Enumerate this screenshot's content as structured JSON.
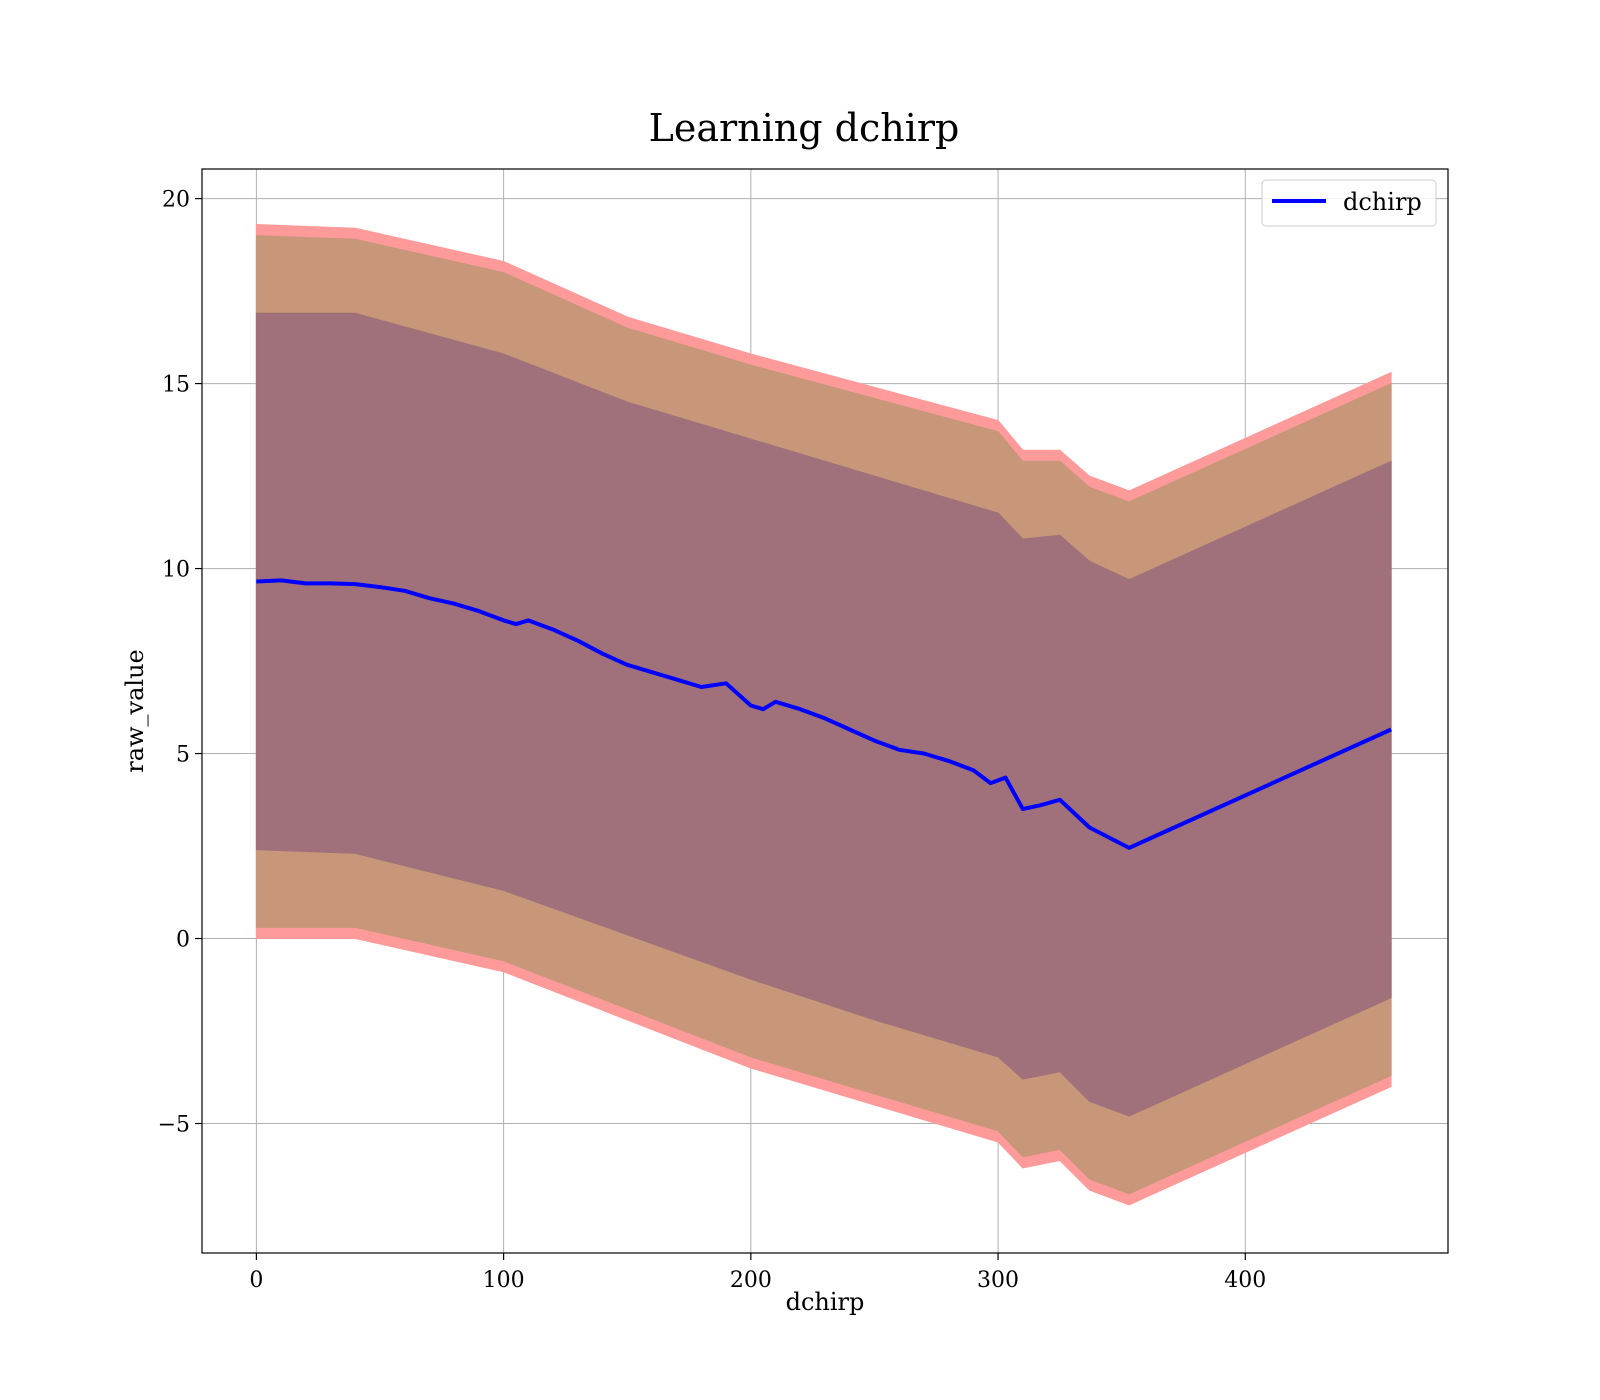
{
  "chart_data": {
    "type": "line",
    "title": "Learning dchirp",
    "xlabel": "dchirp",
    "ylabel": "raw_value",
    "xlim": [
      -22,
      482
    ],
    "ylim": [
      -8.5,
      20.8
    ],
    "xticks": [
      0,
      100,
      200,
      300,
      400
    ],
    "yticks": [
      -5,
      0,
      5,
      10,
      15,
      20
    ],
    "xtick_labels": [
      "0",
      "100",
      "200",
      "300",
      "400"
    ],
    "ytick_labels": [
      "−5",
      "0",
      "5",
      "10",
      "15",
      "20"
    ],
    "grid": true,
    "legend": {
      "placement": "top-right",
      "entries": [
        "dchirp"
      ]
    },
    "colors": {
      "line": "#0000ff",
      "band_outer": "#ff9a9a",
      "band_middle": "#c8977a",
      "band_inner": "#a0717a"
    },
    "series": [
      {
        "name": "dchirp",
        "x": [
          0,
          10,
          20,
          30,
          40,
          50,
          60,
          70,
          80,
          90,
          100,
          105,
          110,
          120,
          130,
          140,
          150,
          160,
          170,
          180,
          190,
          200,
          205,
          210,
          220,
          230,
          240,
          250,
          260,
          270,
          280,
          290,
          297,
          303,
          310,
          317,
          325,
          337,
          353,
          459
        ],
        "values": [
          9.65,
          9.68,
          9.6,
          9.6,
          9.58,
          9.5,
          9.4,
          9.2,
          9.05,
          8.85,
          8.6,
          8.5,
          8.6,
          8.35,
          8.05,
          7.7,
          7.4,
          7.2,
          7.0,
          6.8,
          6.9,
          6.3,
          6.2,
          6.4,
          6.2,
          5.95,
          5.65,
          5.35,
          5.1,
          5.0,
          4.8,
          4.55,
          4.2,
          4.35,
          3.5,
          3.6,
          3.75,
          3.0,
          2.45,
          5.65
        ]
      }
    ],
    "bands": [
      {
        "x": [
          0,
          40,
          100,
          150,
          200,
          250,
          300,
          310,
          325,
          337,
          353,
          459
        ],
        "upper": [
          19.3,
          19.2,
          18.3,
          16.8,
          15.8,
          14.9,
          14.0,
          13.2,
          13.2,
          12.5,
          12.1,
          15.3
        ],
        "lower": [
          0.0,
          0.0,
          -0.9,
          -2.2,
          -3.5,
          -4.5,
          -5.5,
          -6.2,
          -6.0,
          -6.8,
          -7.2,
          -4.0
        ]
      },
      {
        "x": [
          0,
          40,
          100,
          150,
          200,
          250,
          300,
          310,
          325,
          337,
          353,
          459
        ],
        "upper": [
          19.0,
          18.9,
          18.0,
          16.5,
          15.5,
          14.6,
          13.7,
          12.9,
          12.9,
          12.2,
          11.8,
          15.0
        ],
        "lower": [
          0.3,
          0.3,
          -0.6,
          -1.9,
          -3.2,
          -4.2,
          -5.2,
          -5.9,
          -5.7,
          -6.5,
          -6.9,
          -3.7
        ]
      },
      {
        "x": [
          0,
          40,
          100,
          150,
          200,
          250,
          300,
          310,
          325,
          337,
          353,
          459
        ],
        "upper": [
          16.9,
          16.9,
          15.8,
          14.5,
          13.5,
          12.5,
          11.5,
          10.8,
          10.9,
          10.2,
          9.7,
          12.9
        ],
        "lower": [
          2.4,
          2.3,
          1.3,
          0.1,
          -1.1,
          -2.2,
          -3.2,
          -3.8,
          -3.6,
          -4.4,
          -4.8,
          -1.6
        ]
      }
    ]
  }
}
